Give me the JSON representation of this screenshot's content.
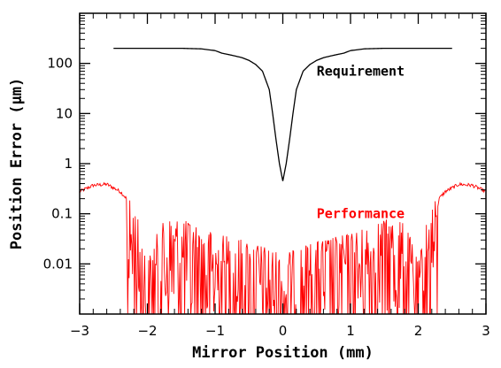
{
  "chart_data": {
    "type": "line",
    "title": "",
    "xlabel": "Mirror Position (mm)",
    "ylabel": "Position Error (μm)",
    "xlim": [
      -3,
      3
    ],
    "ylim": [
      0.001,
      1000
    ],
    "y_scale": "log",
    "grid": false,
    "x_ticks": [
      {
        "value": -3,
        "label": "−3"
      },
      {
        "value": -2,
        "label": "−2"
      },
      {
        "value": -1,
        "label": "−1"
      },
      {
        "value": 0,
        "label": "0"
      },
      {
        "value": 1,
        "label": "1"
      },
      {
        "value": 2,
        "label": "2"
      },
      {
        "value": 3,
        "label": "3"
      }
    ],
    "y_ticks": [
      {
        "value": 0.01,
        "label": "0.01"
      },
      {
        "value": 0.1,
        "label": "0.1"
      },
      {
        "value": 1,
        "label": "1"
      },
      {
        "value": 10,
        "label": "10"
      },
      {
        "value": 100,
        "label": "100"
      }
    ],
    "series": [
      {
        "name": "Requirement",
        "color": "#000000",
        "x": [
          -2.5,
          -1.5,
          -1.2,
          -1.0,
          -0.9,
          -0.8,
          -0.7,
          -0.6,
          -0.5,
          -0.4,
          -0.3,
          -0.2,
          -0.15,
          -0.1,
          -0.05,
          0.0,
          0.05,
          0.1,
          0.15,
          0.2,
          0.3,
          0.4,
          0.5,
          0.6,
          0.7,
          0.8,
          0.9,
          1.0,
          1.2,
          1.5,
          2.5
        ],
        "y": [
          200,
          200,
          195,
          180,
          160,
          150,
          140,
          130,
          115,
          95,
          70,
          30,
          10,
          3,
          1,
          0.45,
          1,
          3,
          10,
          30,
          70,
          95,
          115,
          130,
          140,
          150,
          160,
          180,
          195,
          200,
          200
        ]
      },
      {
        "name": "Performance",
        "color": "#ff0000",
        "envelope_x": [
          -3.0,
          -2.8,
          -2.6,
          -2.4,
          -2.2,
          -2.1,
          -2.0,
          -1.9,
          -1.8,
          -1.7,
          -1.6,
          -1.4,
          -1.2,
          -1.0,
          -0.8,
          -0.6,
          -0.4,
          -0.2,
          0.0,
          0.2,
          0.4,
          0.6,
          0.8,
          1.0,
          1.2,
          1.4,
          1.6,
          1.7,
          1.8,
          1.9,
          2.0,
          2.1,
          2.2,
          2.4,
          2.6,
          2.8,
          3.0
        ],
        "envelope_y": [
          0.3,
          0.4,
          0.42,
          0.3,
          0.15,
          0.05,
          0.01,
          0.03,
          0.06,
          0.08,
          0.08,
          0.07,
          0.05,
          0.04,
          0.035,
          0.03,
          0.025,
          0.02,
          0.015,
          0.02,
          0.025,
          0.03,
          0.035,
          0.04,
          0.05,
          0.07,
          0.08,
          0.08,
          0.06,
          0.03,
          0.01,
          0.05,
          0.15,
          0.3,
          0.42,
          0.4,
          0.3
        ]
      }
    ],
    "annotations": [
      {
        "text": "Requirement",
        "x": 0.5,
        "y": 70,
        "color": "#000000"
      },
      {
        "text": "Performance",
        "x": 0.5,
        "y": 0.1,
        "color": "#ff0000"
      }
    ]
  }
}
